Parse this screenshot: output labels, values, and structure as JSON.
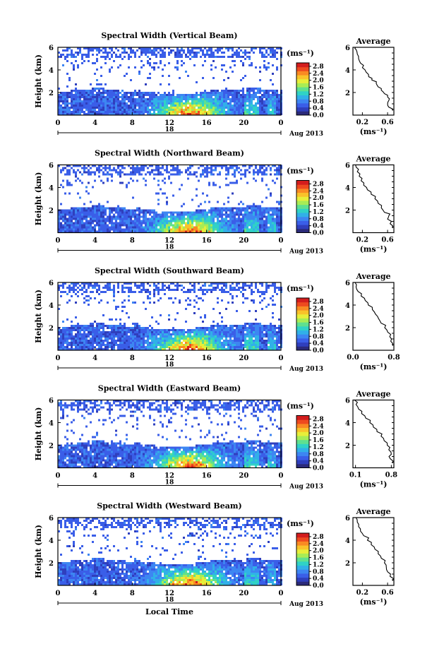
{
  "chart_data": [
    {
      "type": "heatmap",
      "title": "Spectral Width (Vertical Beam)",
      "ylabel": "Height (km)",
      "ylim": [
        0,
        6
      ],
      "x_ticks": [
        "0",
        "4",
        "8",
        "12",
        "16",
        "20",
        "0"
      ],
      "day_label": "18",
      "month_label": "Aug 2013",
      "colorbar": {
        "unit": "(ms⁻¹)",
        "ticks": [
          "2.8",
          "2.4",
          "2.0",
          "1.6",
          "1.2",
          "0.8",
          "0.4",
          "0.0"
        ],
        "range": [
          0,
          3
        ]
      },
      "average": {
        "title": "Average",
        "xlabel": "(ms⁻¹)",
        "x_ticks": [
          "0.2",
          "0.6"
        ],
        "xlim": [
          0.05,
          0.7
        ],
        "y_ticks": [
          "2",
          "4",
          "6"
        ],
        "profile": [
          [
            0.68,
            0.4
          ],
          [
            0.62,
            0.7
          ],
          [
            0.6,
            1.0
          ],
          [
            0.62,
            1.3
          ],
          [
            0.6,
            1.6
          ],
          [
            0.55,
            1.9
          ],
          [
            0.5,
            2.2
          ],
          [
            0.45,
            2.5
          ],
          [
            0.42,
            2.8
          ],
          [
            0.35,
            3.1
          ],
          [
            0.3,
            3.4
          ],
          [
            0.26,
            3.8
          ],
          [
            0.2,
            4.2
          ],
          [
            0.17,
            4.6
          ],
          [
            0.14,
            5.0
          ],
          [
            0.12,
            5.4
          ],
          [
            0.1,
            5.8
          ],
          [
            0.09,
            6.0
          ]
        ]
      },
      "peak_band": [
        0.6,
        2.2
      ]
    },
    {
      "type": "heatmap",
      "title": "Spectral Width (Northward Beam)",
      "ylabel": "Height (km)",
      "ylim": [
        0,
        6
      ],
      "x_ticks": [
        "0",
        "4",
        "8",
        "12",
        "16",
        "20",
        "0"
      ],
      "day_label": "18",
      "month_label": "Aug 2013",
      "colorbar": {
        "unit": "(ms⁻¹)",
        "ticks": [
          "2.8",
          "2.4",
          "2.0",
          "1.6",
          "1.2",
          "0.8",
          "0.4",
          "0.0"
        ],
        "range": [
          0,
          3
        ]
      },
      "average": {
        "title": "Average",
        "xlabel": "(ms⁻¹)",
        "x_ticks": [
          "0.2",
          "0.6"
        ],
        "xlim": [
          0.05,
          0.7
        ],
        "y_ticks": [
          "2",
          "4",
          "6"
        ],
        "profile": [
          [
            0.68,
            0.4
          ],
          [
            0.64,
            0.8
          ],
          [
            0.6,
            1.2
          ],
          [
            0.62,
            1.5
          ],
          [
            0.55,
            1.8
          ],
          [
            0.5,
            2.2
          ],
          [
            0.45,
            2.6
          ],
          [
            0.4,
            3.0
          ],
          [
            0.34,
            3.4
          ],
          [
            0.28,
            3.8
          ],
          [
            0.22,
            4.2
          ],
          [
            0.18,
            4.6
          ],
          [
            0.15,
            5.0
          ],
          [
            0.12,
            5.4
          ],
          [
            0.1,
            5.8
          ],
          [
            0.09,
            6.0
          ]
        ]
      },
      "peak_band": [
        0.6,
        2.4
      ]
    },
    {
      "type": "heatmap",
      "title": "Spectral Width (Southward Beam)",
      "ylabel": "Height (km)",
      "ylim": [
        0,
        6
      ],
      "x_ticks": [
        "0",
        "4",
        "8",
        "12",
        "16",
        "20",
        "0"
      ],
      "day_label": "18",
      "month_label": "Aug 2013",
      "colorbar": {
        "unit": "(ms⁻¹)",
        "ticks": [
          "2.8",
          "2.4",
          "2.0",
          "1.6",
          "1.2",
          "0.8",
          "0.4",
          "0.0"
        ],
        "range": [
          0,
          3
        ]
      },
      "average": {
        "title": "Average",
        "xlabel": "(ms⁻¹)",
        "x_ticks": [
          "0.0",
          "0.8"
        ],
        "xlim": [
          0.0,
          0.8
        ],
        "y_ticks": [
          "2",
          "4",
          "6"
        ],
        "profile": [
          [
            0.78,
            0.4
          ],
          [
            0.74,
            0.8
          ],
          [
            0.72,
            1.2
          ],
          [
            0.68,
            1.6
          ],
          [
            0.62,
            2.0
          ],
          [
            0.55,
            2.4
          ],
          [
            0.5,
            2.8
          ],
          [
            0.44,
            3.2
          ],
          [
            0.38,
            3.6
          ],
          [
            0.3,
            4.0
          ],
          [
            0.24,
            4.4
          ],
          [
            0.16,
            4.8
          ],
          [
            0.1,
            5.2
          ],
          [
            0.06,
            5.6
          ],
          [
            0.04,
            6.0
          ]
        ]
      },
      "peak_band": [
        0.6,
        2.6
      ]
    },
    {
      "type": "heatmap",
      "title": "Spectral Width (Eastward Beam)",
      "ylabel": "Height (km)",
      "ylim": [
        0,
        6
      ],
      "x_ticks": [
        "0",
        "4",
        "8",
        "12",
        "16",
        "20",
        "0"
      ],
      "day_label": "18",
      "month_label": "Aug 2013",
      "colorbar": {
        "unit": "(ms⁻¹)",
        "ticks": [
          "2.8",
          "2.4",
          "2.0",
          "1.6",
          "1.2",
          "0.8",
          "0.4",
          "0.0"
        ],
        "range": [
          0,
          3
        ]
      },
      "average": {
        "title": "Average",
        "xlabel": "(ms⁻¹)",
        "x_ticks": [
          "0.1",
          "0.8"
        ],
        "xlim": [
          0.05,
          0.85
        ],
        "y_ticks": [
          "2",
          "4",
          "6"
        ],
        "profile": [
          [
            0.82,
            0.4
          ],
          [
            0.78,
            0.8
          ],
          [
            0.8,
            1.2
          ],
          [
            0.75,
            1.6
          ],
          [
            0.72,
            2.0
          ],
          [
            0.66,
            2.4
          ],
          [
            0.6,
            2.8
          ],
          [
            0.52,
            3.2
          ],
          [
            0.45,
            3.6
          ],
          [
            0.38,
            4.0
          ],
          [
            0.3,
            4.4
          ],
          [
            0.22,
            4.8
          ],
          [
            0.16,
            5.2
          ],
          [
            0.11,
            5.6
          ],
          [
            0.08,
            6.0
          ]
        ]
      },
      "peak_band": [
        0.6,
        2.4
      ]
    },
    {
      "type": "heatmap",
      "title": "Spectral Width (Westward Beam)",
      "ylabel": "Height (km)",
      "xlabel": "Local Time",
      "ylim": [
        0,
        6
      ],
      "x_ticks": [
        "0",
        "4",
        "8",
        "12",
        "16",
        "20",
        "0"
      ],
      "day_label": "18",
      "month_label": "Aug 2013",
      "colorbar": {
        "unit": "(ms⁻¹)",
        "ticks": [
          "2.8",
          "2.4",
          "2.0",
          "1.6",
          "1.2",
          "0.8",
          "0.4",
          "0.0"
        ],
        "range": [
          0,
          3
        ]
      },
      "average": {
        "title": "Average",
        "xlabel": "(ms⁻¹)",
        "x_ticks": [
          "0.2",
          "0.6"
        ],
        "xlim": [
          0.05,
          0.7
        ],
        "y_ticks": [
          "2",
          "4",
          "6"
        ],
        "profile": [
          [
            0.68,
            0.4
          ],
          [
            0.64,
            0.8
          ],
          [
            0.6,
            1.2
          ],
          [
            0.58,
            1.6
          ],
          [
            0.55,
            2.0
          ],
          [
            0.5,
            2.4
          ],
          [
            0.45,
            2.8
          ],
          [
            0.4,
            3.2
          ],
          [
            0.34,
            3.6
          ],
          [
            0.28,
            4.0
          ],
          [
            0.22,
            4.4
          ],
          [
            0.17,
            4.8
          ],
          [
            0.14,
            5.2
          ],
          [
            0.12,
            5.6
          ],
          [
            0.1,
            6.0
          ]
        ]
      },
      "peak_band": [
        0.6,
        2.4
      ]
    }
  ],
  "colorscale": [
    "#2b2a7a",
    "#2f3fbd",
    "#3a5ee8",
    "#3d86f2",
    "#31b0e8",
    "#30d2c6",
    "#5fe08f",
    "#a8ec55",
    "#e7ee3a",
    "#f9c22a",
    "#f98a23",
    "#ee4a1f",
    "#d31d1d"
  ]
}
